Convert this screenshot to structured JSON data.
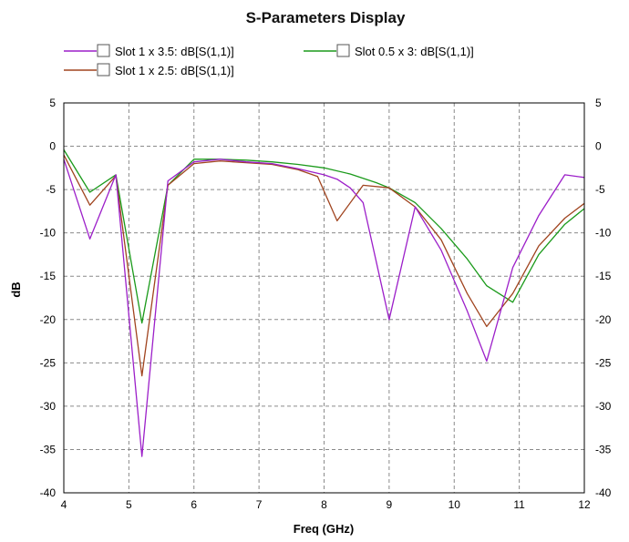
{
  "chart_data": {
    "type": "line",
    "title": "S-Parameters Display",
    "xlabel": "Freq (GHz)",
    "ylabel": "dB",
    "xlim": [
      4,
      12
    ],
    "ylim": [
      -40,
      5
    ],
    "xticks": [
      4,
      5,
      6,
      7,
      8,
      9,
      10,
      11,
      12
    ],
    "yticks": [
      5,
      0,
      -5,
      -10,
      -15,
      -20,
      -25,
      -30,
      -35,
      -40
    ],
    "grid": true,
    "legend_position": "top",
    "series": [
      {
        "name": "Slot 1 x 3.5: dB[S(1,1)]",
        "color": "#9c1fc9",
        "x": [
          4.0,
          4.4,
          4.8,
          5.2,
          5.6,
          6.0,
          6.4,
          6.8,
          7.2,
          7.6,
          8.0,
          8.2,
          8.4,
          8.6,
          9.0,
          9.4,
          9.8,
          10.2,
          10.5,
          10.9,
          11.3,
          11.7,
          12.0
        ],
        "y": [
          -1.5,
          -10.7,
          -3.3,
          -35.8,
          -4.0,
          -1.8,
          -1.5,
          -1.8,
          -2.0,
          -2.6,
          -3.3,
          -3.8,
          -4.8,
          -6.5,
          -20.0,
          -7.0,
          -12.0,
          -19.0,
          -24.8,
          -14.0,
          -8.0,
          -3.3,
          -3.6
        ]
      },
      {
        "name": "Slot 1 x 2.5: dB[S(1,1)]",
        "color": "#a0441f",
        "x": [
          4.0,
          4.4,
          4.8,
          5.2,
          5.6,
          6.0,
          6.4,
          6.8,
          7.2,
          7.6,
          7.9,
          8.2,
          8.6,
          9.0,
          9.4,
          9.8,
          10.2,
          10.5,
          10.9,
          11.3,
          11.7,
          12.0
        ],
        "y": [
          -1.0,
          -6.8,
          -3.4,
          -26.5,
          -4.5,
          -2.0,
          -1.7,
          -1.9,
          -2.1,
          -2.7,
          -3.5,
          -8.6,
          -4.5,
          -4.8,
          -7.0,
          -10.8,
          -17.0,
          -20.8,
          -17.0,
          -11.5,
          -8.3,
          -6.6
        ]
      },
      {
        "name": "Slot 0.5 x 3: dB[S(1,1)]",
        "color": "#1a9a1a",
        "x": [
          4.0,
          4.4,
          4.8,
          5.2,
          5.6,
          6.0,
          6.4,
          6.8,
          7.2,
          7.6,
          8.0,
          8.4,
          8.8,
          9.0,
          9.4,
          9.8,
          10.2,
          10.5,
          10.9,
          11.3,
          11.7,
          12.0
        ],
        "y": [
          -0.4,
          -5.3,
          -3.3,
          -20.4,
          -4.5,
          -1.5,
          -1.5,
          -1.6,
          -1.8,
          -2.1,
          -2.5,
          -3.2,
          -4.2,
          -4.8,
          -6.5,
          -9.5,
          -13.0,
          -16.1,
          -18.0,
          -12.5,
          -9.0,
          -7.2
        ]
      }
    ]
  }
}
